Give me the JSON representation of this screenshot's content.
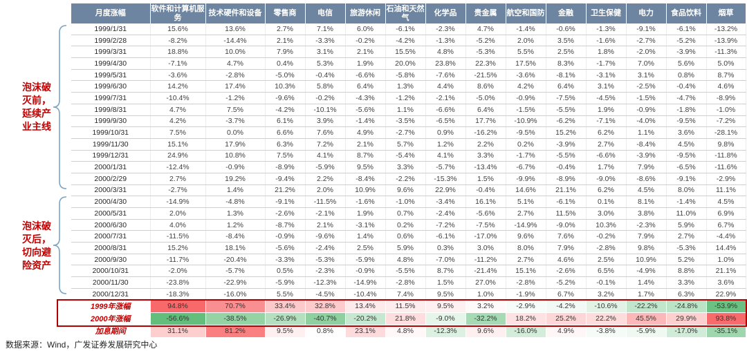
{
  "annotations": {
    "pre_bubble": "泡沫破灭前，延续产业主线",
    "post_bubble": "泡沫破灭后，切向避险资产"
  },
  "footer": "数据来源：Wind，广发证券发展研究中心",
  "colors": {
    "header_bg": "#6d85a0",
    "annotation_red": "#c00000",
    "highlight_box_red": "#b00000",
    "brace_blue": "#7aa3c6",
    "heat_positive": "#f8696b",
    "heat_negative": "#63be7b"
  },
  "chart_data": {
    "type": "table",
    "title": "",
    "columns": [
      "月度涨幅",
      "软件和计算机服务",
      "技术硬件和设备",
      "零售商",
      "电信",
      "旅游休闲",
      "石油和天然气",
      "化学品",
      "贵金属",
      "航空和国防",
      "金融",
      "卫生保健",
      "电力",
      "食品饮料",
      "烟草"
    ],
    "rows": [
      {
        "label": "1999/1/31",
        "values": [
          15.6,
          13.6,
          2.7,
          7.1,
          6.0,
          -6.1,
          -2.3,
          4.7,
          -1.4,
          -0.6,
          -1.3,
          -9.1,
          -6.1,
          -13.2
        ]
      },
      {
        "label": "1999/2/28",
        "values": [
          -8.2,
          -14.4,
          2.1,
          -3.3,
          -0.2,
          -4.2,
          -1.3,
          -5.2,
          2.0,
          3.5,
          -1.6,
          -2.7,
          -5.2,
          -13.9
        ]
      },
      {
        "label": "1999/3/31",
        "values": [
          18.8,
          10.0,
          7.9,
          3.1,
          2.1,
          15.5,
          4.8,
          -5.3,
          5.5,
          2.5,
          1.8,
          -2.0,
          -3.9,
          -11.3
        ]
      },
      {
        "label": "1999/4/30",
        "values": [
          -7.1,
          4.7,
          0.4,
          5.3,
          1.9,
          20.0,
          23.8,
          22.3,
          17.5,
          8.3,
          -1.7,
          7.0,
          5.6,
          5.0
        ]
      },
      {
        "label": "1999/5/31",
        "values": [
          -3.6,
          -2.8,
          -5.0,
          -0.4,
          -6.6,
          -5.8,
          -7.6,
          -21.5,
          -3.6,
          -8.1,
          -3.1,
          3.1,
          0.8,
          8.7
        ]
      },
      {
        "label": "1999/6/30",
        "values": [
          14.2,
          17.4,
          10.3,
          5.8,
          6.4,
          1.3,
          4.4,
          8.6,
          4.2,
          6.4,
          3.1,
          -2.5,
          -0.4,
          4.6
        ]
      },
      {
        "label": "1999/7/31",
        "values": [
          -10.4,
          -1.2,
          -9.6,
          -0.2,
          -4.3,
          -1.2,
          -2.1,
          -5.0,
          -0.9,
          -7.5,
          -4.5,
          -1.5,
          -4.7,
          -8.9
        ]
      },
      {
        "label": "1999/8/31",
        "values": [
          4.7,
          7.5,
          -4.2,
          -10.1,
          -5.6,
          1.1,
          -6.6,
          6.4,
          -1.5,
          -5.5,
          1.9,
          -0.9,
          -1.8,
          -1.0
        ]
      },
      {
        "label": "1999/9/30",
        "values": [
          4.2,
          -3.7,
          6.1,
          3.9,
          -1.4,
          -3.5,
          -6.5,
          17.7,
          -10.9,
          -6.2,
          -7.1,
          -4.0,
          -9.5,
          -7.2
        ]
      },
      {
        "label": "1999/10/31",
        "values": [
          7.5,
          0.0,
          6.6,
          7.6,
          4.9,
          -2.7,
          0.9,
          -16.2,
          -9.5,
          15.2,
          6.2,
          1.1,
          3.6,
          -28.1
        ]
      },
      {
        "label": "1999/11/30",
        "values": [
          15.1,
          17.9,
          6.3,
          7.2,
          2.1,
          5.7,
          1.2,
          2.2,
          0.2,
          -3.9,
          2.7,
          -8.4,
          4.5,
          9.8
        ]
      },
      {
        "label": "1999/12/31",
        "values": [
          24.9,
          10.8,
          7.5,
          4.1,
          8.7,
          -5.4,
          4.1,
          3.3,
          -1.7,
          -5.5,
          -6.6,
          -3.9,
          -9.5,
          -11.8
        ]
      },
      {
        "label": "2000/1/31",
        "values": [
          -12.4,
          -0.9,
          -8.9,
          -5.9,
          9.5,
          3.3,
          -5.7,
          -13.4,
          -6.7,
          -0.4,
          1.7,
          7.9,
          -6.5,
          -11.6
        ]
      },
      {
        "label": "2000/2/29",
        "values": [
          2.7,
          19.2,
          -9.4,
          2.2,
          -8.4,
          -2.2,
          -15.3,
          1.5,
          -9.9,
          -8.9,
          -9.0,
          -8.6,
          -9.1,
          -2.9
        ]
      },
      {
        "label": "2000/3/31",
        "values": [
          -2.7,
          1.4,
          21.2,
          2.0,
          10.9,
          9.6,
          22.9,
          -0.4,
          14.6,
          21.1,
          6.2,
          4.5,
          8.0,
          11.1
        ]
      },
      {
        "label": "2000/4/30",
        "values": [
          -14.9,
          -4.8,
          -9.1,
          -11.5,
          -1.6,
          -1.0,
          -3.4,
          16.1,
          5.1,
          -6.1,
          0.1,
          8.1,
          -1.4,
          4.5
        ]
      },
      {
        "label": "2000/5/31",
        "values": [
          2.0,
          1.3,
          -2.6,
          -2.1,
          1.9,
          0.7,
          -2.4,
          -5.6,
          2.7,
          11.5,
          3.0,
          3.8,
          11.0,
          6.9
        ]
      },
      {
        "label": "2000/6/30",
        "values": [
          4.0,
          1.2,
          -8.7,
          2.1,
          -3.1,
          0.2,
          -7.2,
          -7.5,
          -14.9,
          -9.0,
          10.3,
          -2.3,
          5.9,
          6.7
        ]
      },
      {
        "label": "2000/7/31",
        "values": [
          -11.5,
          -8.4,
          -0.9,
          -9.6,
          1.4,
          0.6,
          -6.1,
          -17.0,
          9.6,
          7.6,
          -0.2,
          7.9,
          2.7,
          -4.4
        ]
      },
      {
        "label": "2000/8/31",
        "values": [
          15.2,
          18.1,
          -5.6,
          -2.4,
          2.5,
          5.9,
          0.3,
          3.0,
          8.0,
          7.9,
          -2.8,
          9.8,
          -5.3,
          14.4
        ]
      },
      {
        "label": "2000/9/30",
        "values": [
          -11.7,
          -20.4,
          -3.3,
          -5.3,
          -5.9,
          4.8,
          -7.0,
          -11.2,
          2.7,
          4.6,
          2.5,
          10.9,
          5.2,
          1.0
        ]
      },
      {
        "label": "2000/10/31",
        "values": [
          -2.0,
          -5.7,
          0.5,
          -2.3,
          -0.9,
          -5.5,
          8.7,
          -21.4,
          15.1,
          -2.6,
          6.5,
          -4.9,
          8.8,
          21.1
        ]
      },
      {
        "label": "2000/11/30",
        "values": [
          -23.8,
          -22.9,
          -5.9,
          -12.3,
          -14.9,
          -2.8,
          1.5,
          27.0,
          -2.8,
          -5.2,
          -0.1,
          1.4,
          3.3,
          3.6
        ]
      },
      {
        "label": "2000/12/31",
        "values": [
          -18.3,
          -16.0,
          5.5,
          -4.5,
          -10.4,
          7.4,
          9.5,
          1.0,
          -1.9,
          6.7,
          3.2,
          1.7,
          6.3,
          22.9
        ]
      }
    ],
    "summary_rows": [
      {
        "label": "1999年涨幅",
        "values": [
          94.8,
          70.7,
          33.4,
          32.8,
          13.4,
          11.5,
          9.5,
          3.2,
          -2.9,
          -4.2,
          -10.6,
          -22.2,
          -24.8,
          -53.9
        ]
      },
      {
        "label": "2000年涨幅",
        "values": [
          -56.6,
          -38.5,
          -26.9,
          -40.7,
          -20.2,
          21.8,
          -9.0,
          -32.2,
          18.2,
          25.2,
          22.2,
          45.5,
          29.9,
          93.8
        ]
      },
      {
        "label": "加息期间",
        "values": [
          31.1,
          81.2,
          9.5,
          0.8,
          23.1,
          4.8,
          -12.3,
          9.6,
          -16.0,
          4.9,
          -3.8,
          -5.9,
          -17.0,
          -35.1
        ]
      }
    ],
    "highlight_box_rows": [
      "1999年涨幅",
      "2000年涨幅"
    ],
    "heatmap": {
      "max_positive": 94.8,
      "max_negative": -56.6
    },
    "value_format": "percent_one_decimal"
  }
}
